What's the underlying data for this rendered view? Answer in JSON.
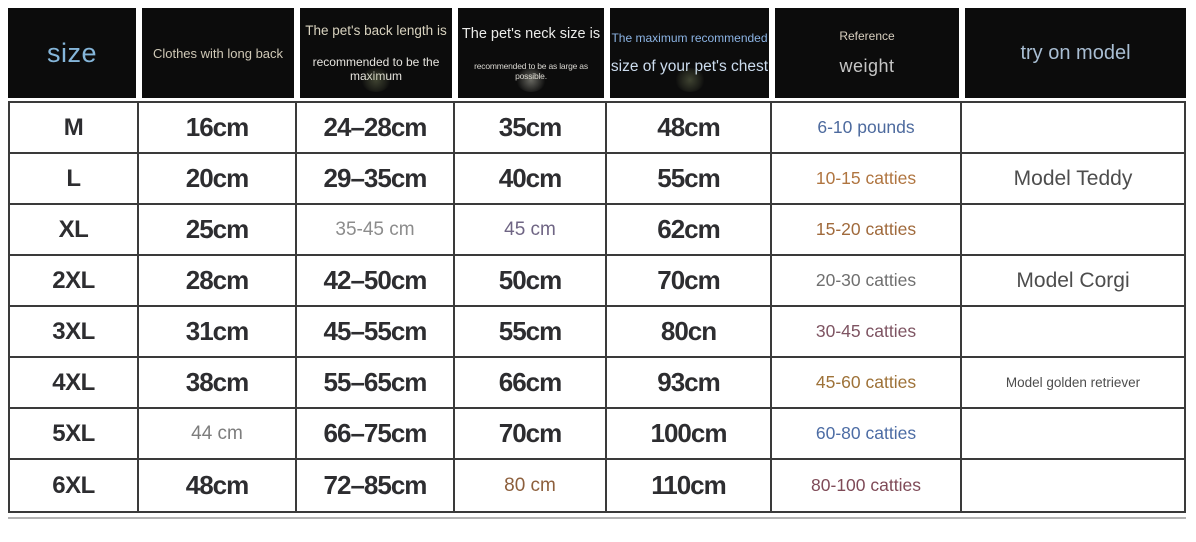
{
  "chart_data": {
    "type": "table",
    "title": "Pet clothes size chart",
    "columns": [
      {
        "label": "size"
      },
      {
        "label": "Clothes with long back"
      },
      {
        "line1": "The pet's back length is",
        "line2": "recommended to be the maximum"
      },
      {
        "line1": "The pet's neck size is",
        "line2": "recommended to be as large as possible."
      },
      {
        "line1": "The maximum recommended",
        "line2": "size of your pet's chest"
      },
      {
        "line1": "Reference",
        "line2": "weight"
      },
      {
        "label": "try on model"
      }
    ],
    "rows": [
      {
        "size": "M",
        "clothes": "16cm",
        "back": "24–28cm",
        "neck": "35cm",
        "chest": "48cm",
        "weight": "6-10 pounds",
        "weight_color": "#4d6a9e",
        "model": ""
      },
      {
        "size": "L",
        "clothes": "20cm",
        "back": "29–35cm",
        "neck": "40cm",
        "chest": "55cm",
        "weight": "10-15 catties",
        "weight_color": "#b07540",
        "model": "Model Teddy"
      },
      {
        "size": "XL",
        "clothes": "25cm",
        "back": "35-45 cm",
        "back_color": "#8c8c8c",
        "neck": "45 cm",
        "neck_color": "#6f6584",
        "chest": "62cm",
        "weight": "15-20 catties",
        "weight_color": "#a06a3c",
        "model": ""
      },
      {
        "size": "2XL",
        "clothes": "28cm",
        "back": "42–50cm",
        "neck": "50cm",
        "chest": "70cm",
        "weight": "20-30 catties",
        "weight_color": "#6f6f6f",
        "model": "Model Corgi"
      },
      {
        "size": "3XL",
        "clothes": "31cm",
        "back": "45–55cm",
        "neck": "55cm",
        "chest": "80cn",
        "weight": "30-45 catties",
        "weight_color": "#7e5462",
        "model": ""
      },
      {
        "size": "4XL",
        "clothes": "38cm",
        "back": "55–65cm",
        "neck": "66cm",
        "chest": "93cm",
        "weight": "45-60 catties",
        "weight_color": "#9e7238",
        "model": "Model golden retriever"
      },
      {
        "size": "5XL",
        "clothes": "44 cm",
        "clothes_color": "#7d7d7d",
        "back": "66–75cm",
        "neck": "70cm",
        "chest": "100cm",
        "weight": "60-80 catties",
        "weight_color": "#4c6ca4",
        "model": ""
      },
      {
        "size": "6XL",
        "clothes": "48cm",
        "back": "72–85cm",
        "neck": "80 cm",
        "neck_color": "#8d5f3c",
        "chest": "110cm",
        "weight": "80-100 catties",
        "weight_color": "#7f4a57",
        "model": ""
      }
    ]
  },
  "colors": {
    "header_background": "#0c0c0c",
    "grid_line": "#3a3a3a",
    "size_header_text": "#85b6da",
    "chest_header_accent": "#8cb4e4",
    "model_header_text": "#a9bed3",
    "value_text": "#2d2d30"
  }
}
